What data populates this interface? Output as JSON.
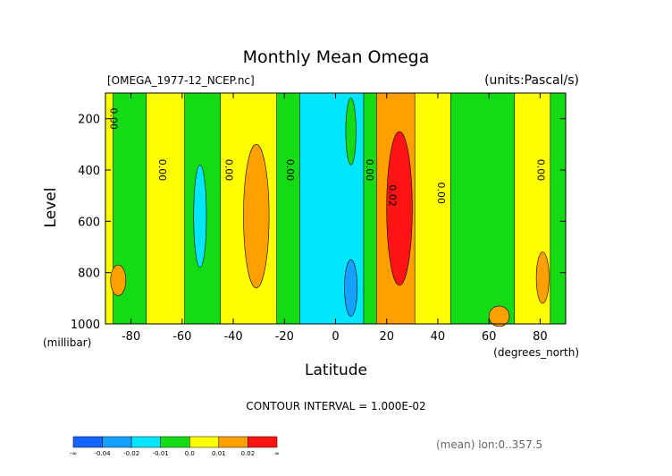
{
  "chart_data": {
    "type": "heatmap",
    "title": "Monthly Mean Omega",
    "file_label": "[OMEGA_1977-12_NCEP.nc]",
    "units_label": "(units:Pascal/s)",
    "xlabel": "Latitude",
    "x_unit": "(degrees_north)",
    "ylabel": "Level",
    "y_unit": "(millibar)",
    "xlim": [
      -90,
      90
    ],
    "ylim": [
      1000,
      100
    ],
    "x_ticks": [
      -80,
      -60,
      -40,
      -20,
      0,
      20,
      40,
      60,
      80
    ],
    "x_tick_labels": [
      "-80",
      "-60",
      "-40",
      "-20",
      "0",
      "20",
      "40",
      "60",
      "80"
    ],
    "y_ticks": [
      200,
      400,
      600,
      800,
      1000
    ],
    "y_tick_labels": [
      "200",
      "400",
      "600",
      "800",
      "1000"
    ],
    "contour_interval_text": "CONTOUR INTERVAL = 1.000E-02",
    "footer_text": "(mean) lon:0..357.5",
    "colorbar": {
      "colors": [
        "#1464ff",
        "#14a0ff",
        "#00e6ff",
        "#14dc14",
        "#ffff00",
        "#ffa000",
        "#ff1414"
      ],
      "labels": [
        "-∞",
        "-0.04",
        "-0.02",
        "-0.01",
        "0.0",
        "0.01",
        "0.02",
        "∞"
      ]
    },
    "bands": [
      {
        "from": -90,
        "to": -87,
        "color": "#ffff00"
      },
      {
        "from": -87,
        "to": -74,
        "color": "#14dc14"
      },
      {
        "from": -74,
        "to": -59,
        "color": "#ffff00"
      },
      {
        "from": -59,
        "to": -45,
        "color": "#14dc14"
      },
      {
        "from": -45,
        "to": -23,
        "color": "#ffff00"
      },
      {
        "from": -23,
        "to": -14,
        "color": "#14dc14"
      },
      {
        "from": -14,
        "to": 11,
        "color": "#00e6ff"
      },
      {
        "from": 11,
        "to": 16,
        "color": "#14dc14"
      },
      {
        "from": 16,
        "to": 31,
        "color": "#ffa000"
      },
      {
        "from": 31,
        "to": 45,
        "color": "#ffff00"
      },
      {
        "from": 45,
        "to": 70,
        "color": "#14dc14"
      },
      {
        "from": 70,
        "to": 84,
        "color": "#ffff00"
      },
      {
        "from": 84,
        "to": 90,
        "color": "#14dc14"
      }
    ],
    "blobs": [
      {
        "cx": 25,
        "cy": 550,
        "rx": 5,
        "ry": 300,
        "color": "#ff1414"
      },
      {
        "cx": -31,
        "cy": 580,
        "rx": 5,
        "ry": 280,
        "color": "#ffa000"
      },
      {
        "cx": -53,
        "cy": 580,
        "rx": 2.5,
        "ry": 200,
        "color": "#00e6ff"
      },
      {
        "cx": 6,
        "cy": 860,
        "rx": 2.5,
        "ry": 110,
        "color": "#14a0ff"
      },
      {
        "cx": -85,
        "cy": 830,
        "rx": 3,
        "ry": 60,
        "color": "#ffa000"
      },
      {
        "cx": 81,
        "cy": 820,
        "rx": 2.5,
        "ry": 100,
        "color": "#ffa000"
      },
      {
        "cx": 64,
        "cy": 970,
        "rx": 4,
        "ry": 40,
        "color": "#ffa000"
      },
      {
        "cx": 6,
        "cy": 250,
        "rx": 2,
        "ry": 130,
        "color": "#14dc14"
      }
    ],
    "contour_labels": [
      {
        "text": "0.00",
        "x": -88,
        "y": 200
      },
      {
        "text": "0.00",
        "x": -69,
        "y": 400
      },
      {
        "text": "0.00",
        "x": -43,
        "y": 400
      },
      {
        "text": "0.00",
        "x": -19,
        "y": 400
      },
      {
        "text": "0.00",
        "x": 12,
        "y": 400
      },
      {
        "text": "0.02",
        "x": 21,
        "y": 500
      },
      {
        "text": "0.00",
        "x": 40,
        "y": 490
      },
      {
        "text": "0.00",
        "x": 79,
        "y": 400
      }
    ]
  }
}
